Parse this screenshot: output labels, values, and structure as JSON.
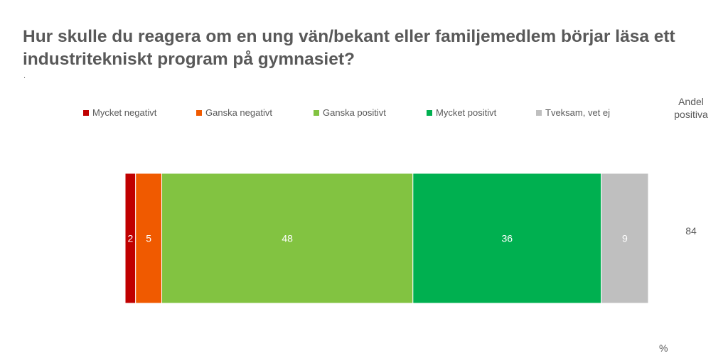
{
  "title": "Hur skulle du reagera om en ung vän/bekant eller familjemedlem börjar läsa ett industritekniskt program på gymnasiet?",
  "footnote_mark": ".",
  "share_header": "Andel positiva",
  "unit": "%",
  "colors": {
    "mycket_negativt": "#C00000",
    "ganska_negativt": "#F05A00",
    "ganska_positivt": "#82C341",
    "mycket_positivt": "#00B050",
    "tveksam": "#BFBFBF"
  },
  "chart_data": {
    "type": "bar",
    "orientation": "horizontal-stacked-100",
    "title": "Hur skulle du reagera om en ung vän/bekant eller familjemedlem börjar läsa ett industritekniskt program på gymnasiet?",
    "series": [
      {
        "name": "Mycket negativt",
        "values": [
          2
        ],
        "color": "#C00000"
      },
      {
        "name": "Ganska negativt",
        "values": [
          5
        ],
        "color": "#F05A00"
      },
      {
        "name": "Ganska positivt",
        "values": [
          48
        ],
        "color": "#82C341"
      },
      {
        "name": "Mycket positivt",
        "values": [
          36
        ],
        "color": "#00B050"
      },
      {
        "name": "Tveksam, vet ej",
        "values": [
          9
        ],
        "color": "#BFBFBF"
      }
    ],
    "andel_positiva": [
      84
    ],
    "legend_position": "top",
    "grid": false,
    "unit": "%"
  }
}
